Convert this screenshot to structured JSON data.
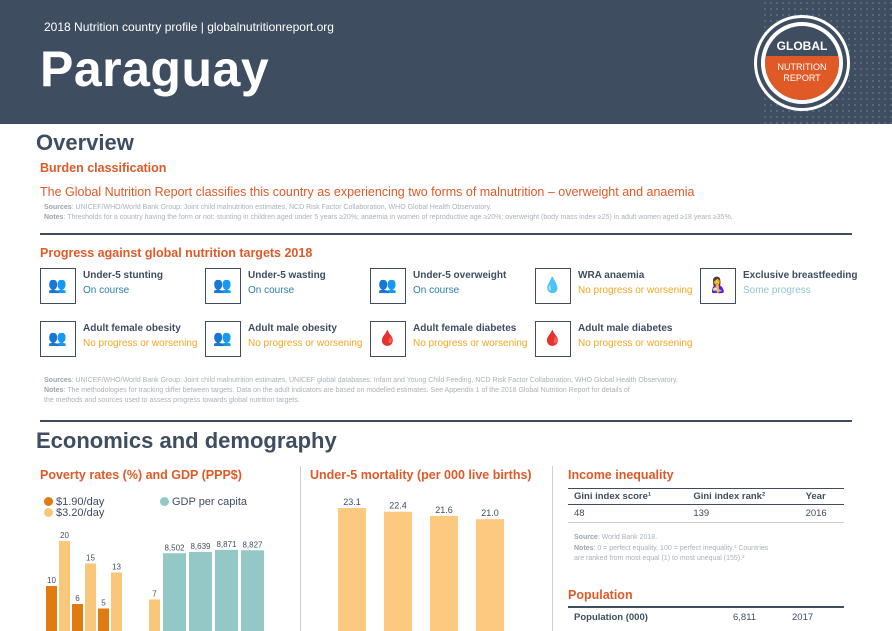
{
  "header": {
    "subtitle": "2018 Nutrition country profile  |  globalnutritionreport.org",
    "country": "Paraguay",
    "logo": {
      "top": "GLOBAL",
      "bottom": "NUTRITION\nREPORT"
    }
  },
  "overview": {
    "title": "Overview",
    "burden_heading": "Burden classification",
    "burden_text": "The Global Nutrition Report classifies this country as experiencing two forms of malnutrition – overweight and anaemia",
    "burden_sources_label": "Sources",
    "burden_sources": ": UNICEF/WHO/World Bank Group: Joint child malnutrition estimates, NCD Risk Factor Collaboration, WHO Global Health Observatory.",
    "burden_notes_label": "Notes",
    "burden_notes": ": Thresholds for a country having the form or not: stunting in children aged under 5 years ≥20%; anaemia in women of reproductive age ≥20%; overweight (body mass index ≥25) in adult women aged ≥18 years ≥35%.",
    "progress_heading": "Progress against global nutrition targets 2018",
    "targets": [
      {
        "name": "Under-5 stunting",
        "status": "On course",
        "icon": "children-icon",
        "glyph": "👥"
      },
      {
        "name": "Under-5 wasting",
        "status": "On course",
        "icon": "children-icon",
        "glyph": "👥"
      },
      {
        "name": "Under-5 overweight",
        "status": "On course",
        "icon": "children-icon",
        "glyph": "👥"
      },
      {
        "name": "WRA anaemia",
        "status": "No progress or worsening",
        "icon": "blood-drop-icon",
        "glyph": "💧"
      },
      {
        "name": "Exclusive breastfeeding",
        "status": "Some progress",
        "icon": "breastfeeding-icon",
        "glyph": "🤱"
      },
      {
        "name": "Adult female obesity",
        "status": "No progress or worsening",
        "icon": "adults-icon",
        "glyph": "👥"
      },
      {
        "name": "Adult male obesity",
        "status": "No progress or worsening",
        "icon": "adults-icon",
        "glyph": "👥"
      },
      {
        "name": "Adult female diabetes",
        "status": "No progress or worsening",
        "icon": "glucose-meter-icon",
        "glyph": "🩸"
      },
      {
        "name": "Adult male diabetes",
        "status": "No progress or worsening",
        "icon": "glucose-meter-icon",
        "glyph": "🩸"
      }
    ],
    "progress_sources_label": "Sources",
    "progress_sources": ": UNICEF/WHO/World Bank Group: Joint child malnutrition estimates, UNICEF global databases: Infant and Young Child Feeding, NCD Risk Factor Collaboration, WHO Global Health Observatory.",
    "progress_notes_label": "Notes",
    "progress_notes_1": ": The methodologies for tracking differ between targets. Data on the adult indicators are based on modelled estimates. See Appendix 1 of the 2018 Global Nutrition Report for details of",
    "progress_notes_2": "the methods and sources used to assess progress towards global nutrition targets."
  },
  "economics": {
    "title": "Economics and demography",
    "poverty_heading": "Poverty rates (%) and GDP (PPP$)",
    "mortality_heading": "Under-5 mortality (per 000 live births)",
    "income_heading": "Income inequality",
    "income_table": {
      "headers": [
        "Gini index score¹",
        "Gini index rank²",
        "Year"
      ],
      "row": [
        "48",
        "139",
        "2016"
      ]
    },
    "income_source_label": "Source",
    "income_source": ": World Bank 2018.",
    "income_notes_label": "Notes",
    "income_notes_1": ": 0 = perfect equality, 100 = perfect inequality.¹ Countries",
    "income_notes_2": "are ranked from most equal (1) to most unequal (155).²",
    "population_heading": "Population",
    "population_row": [
      "Population (000)",
      "6,811",
      "2017"
    ]
  },
  "chart_data": [
    {
      "type": "bar",
      "title": "Poverty rates (%) and GDP (PPP$)",
      "series": [
        {
          "name": "$1.90/day",
          "color": "#e07b12",
          "values": [
            10,
            6,
            5
          ]
        },
        {
          "name": "$3.20/day",
          "color": "#f9c77a",
          "values": [
            20,
            15,
            13,
            7
          ]
        },
        {
          "name": "GDP per capita",
          "color": "#93c8c6",
          "values": [
            8502,
            8639,
            8871,
            8827
          ],
          "labels": [
            "8,502",
            "8,639",
            "8,871",
            "8,827"
          ]
        }
      ]
    },
    {
      "type": "bar",
      "title": "Under-5 mortality (per 000 live births)",
      "color": "#fbc97f",
      "values": [
        23.1,
        22.4,
        21.6,
        21.0
      ],
      "labels": [
        "23.1",
        "22.4",
        "21.6",
        "21.0"
      ]
    }
  ]
}
